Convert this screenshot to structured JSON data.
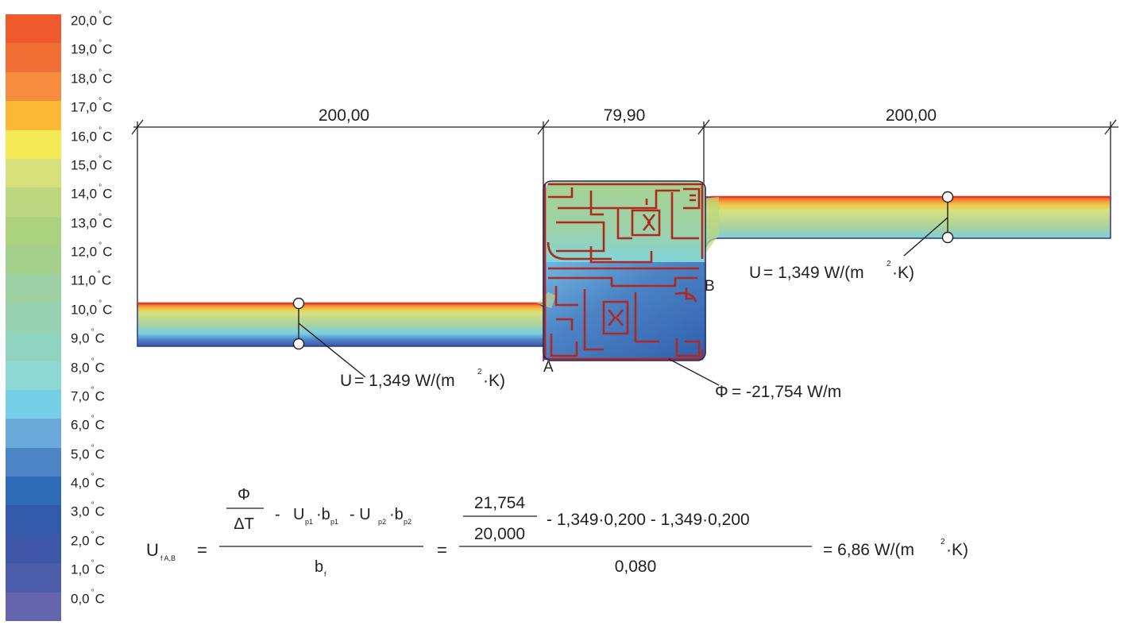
{
  "legend": {
    "colors": [
      "#ee5a2c",
      "#f16e35",
      "#f68c3e",
      "#fbb933",
      "#f2e955",
      "#d7e17c",
      "#bcd77f",
      "#abd27e",
      "#a4d08c",
      "#9dd0a2",
      "#96d2b1",
      "#90d4bf",
      "#8dd8d3",
      "#75cfe7",
      "#6aa9d9",
      "#4d84c5",
      "#2e6cb7",
      "#315aaa",
      "#3e56a7",
      "#4b5cab",
      "#6465ad"
    ],
    "labels": [
      {
        "value": "20,0",
        "unit": "C"
      },
      {
        "value": "19,0",
        "unit": "C"
      },
      {
        "value": "18,0",
        "unit": "C"
      },
      {
        "value": "17,0",
        "unit": "C"
      },
      {
        "value": "16,0",
        "unit": "C"
      },
      {
        "value": "15,0",
        "unit": "C"
      },
      {
        "value": "14,0",
        "unit": "C"
      },
      {
        "value": "13,0",
        "unit": "C"
      },
      {
        "value": "12,0",
        "unit": "C"
      },
      {
        "value": "11,0",
        "unit": "C"
      },
      {
        "value": "10,0",
        "unit": "C"
      },
      {
        "value": "9,0",
        "unit": "C"
      },
      {
        "value": "8,0",
        "unit": "C"
      },
      {
        "value": "7,0",
        "unit": "C"
      },
      {
        "value": "6,0",
        "unit": "C"
      },
      {
        "value": "5,0",
        "unit": "C"
      },
      {
        "value": "4,0",
        "unit": "C"
      },
      {
        "value": "3,0",
        "unit": "C"
      },
      {
        "value": "2,0",
        "unit": "C"
      },
      {
        "value": "1,0",
        "unit": "C"
      },
      {
        "value": "0,0",
        "unit": "C"
      }
    ],
    "degree_symbol": "°"
  },
  "dimensions": {
    "left": "200,00",
    "middle": "79,90",
    "right": "200,00"
  },
  "points": {
    "a": "A",
    "b": "B"
  },
  "annotations": {
    "u_left_prefix": "U",
    "u_left_value": "= 1,349 W/(m",
    "u_left_exp": "2",
    "u_left_suffix": "·K)",
    "u_right_prefix": "U",
    "u_right_value": "= 1,349 W/(m",
    "u_right_exp": "2",
    "u_right_suffix": "·K)",
    "phi_symbol": "Φ",
    "phi_value": "= -21,754 W/m"
  },
  "formula": {
    "lhs_symbol": "U",
    "lhs_sub": "f A,B",
    "eq": "=",
    "phi": "Φ",
    "delta_t": "ΔT",
    "minus": "-",
    "up1": "U",
    "up1_sub": "p1",
    "bp1": "·b",
    "bp1_sub": "p1",
    "minus2": "- U",
    "up2_sub": "p2",
    "bp2": "·b",
    "bp2_sub": "p2",
    "bf": "b",
    "bf_sub": "f",
    "num_value": "21,754",
    "den_value": "20,000",
    "term1": "-  1,349·0,200  -  1,349·0,200",
    "divisor": "0,080",
    "result": "=   6,86 W/(m",
    "result_exp": "2",
    "result_suffix": "·K)"
  }
}
